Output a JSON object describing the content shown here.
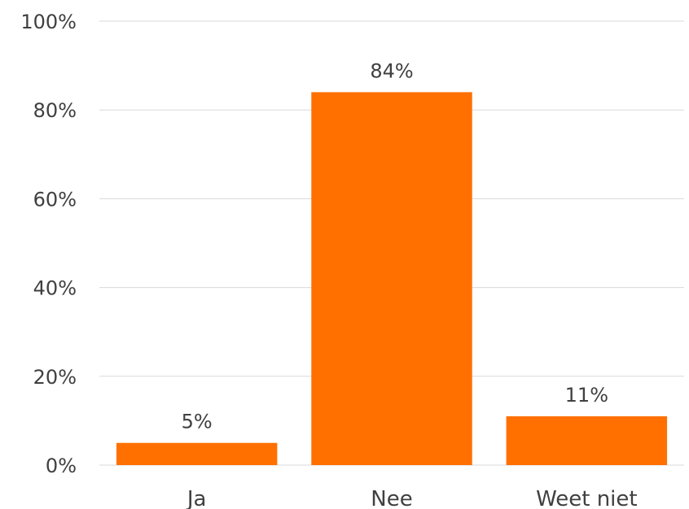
{
  "chart_data": {
    "type": "bar",
    "title": "",
    "xlabel": "",
    "ylabel": "",
    "categories": [
      "Ja",
      "Nee",
      "Weet niet"
    ],
    "values": [
      5,
      84,
      11
    ],
    "data_labels": [
      "5%",
      "84%",
      "11%"
    ],
    "ylim": [
      0,
      100
    ],
    "yticks": [
      0,
      20,
      40,
      60,
      80,
      100
    ],
    "ytick_labels": [
      "0%",
      "20%",
      "40%",
      "60%",
      "80%",
      "100%"
    ],
    "grid": true,
    "legend": "none",
    "colors": {
      "bar": "#FF7000",
      "grid": "#D9D9D9",
      "text": "#404040"
    }
  }
}
